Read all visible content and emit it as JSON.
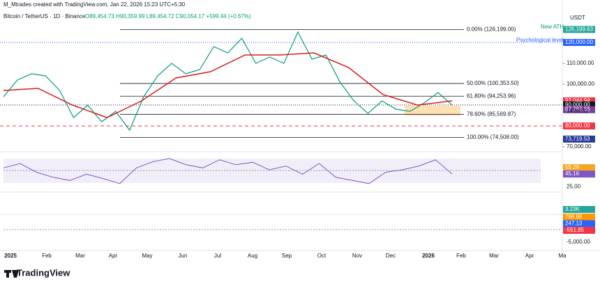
{
  "header": {
    "credit": "M_Mtrades created with TradingView.com, Jan 22, 2026 15:23 UTC+5:30",
    "symbol": "Bitcoin / TetherUS · 1D · Binance",
    "ohlc": "O89,454.73 H90,359.99 L89,454.72 C90,054.17 +599.44 (+0.67%)",
    "currency": "USDT"
  },
  "price_axis": {
    "ticks": [
      {
        "value": 110000,
        "label": "110,000.00"
      },
      {
        "value": 100000,
        "label": "100,000.00"
      },
      {
        "value": 70000,
        "label": "70,000.00"
      }
    ],
    "badges": [
      {
        "value": 126199.63,
        "label": "126,199.63",
        "color": "#26a69a"
      },
      {
        "value": 120000,
        "label": "120,000.00",
        "color": "#2962ff"
      },
      {
        "value": 92044.94,
        "label": "92,044.94",
        "color": "#f23645"
      },
      {
        "value": 90054.17,
        "label": "90,054.17",
        "color": "#131722"
      },
      {
        "value": 90000,
        "label": "90,000.00",
        "color": "#131722"
      },
      {
        "value": 87787.68,
        "label": "87,787.68",
        "color": "#7b3fa0"
      },
      {
        "value": 80000,
        "label": "80,000.00",
        "color": "#f23645"
      },
      {
        "value": 73719.53,
        "label": "73,719.53",
        "color": "#2a3a9a"
      }
    ],
    "countdown": "14:06:32"
  },
  "fib_levels": [
    {
      "label": "0.00% (126,199.00)",
      "value": 126199
    },
    {
      "label": "50.00% (100,353.50)",
      "value": 100353.5
    },
    {
      "label": "61.80% (94,253.96)",
      "value": 94253.96
    },
    {
      "label": "78.60% (85,569.87)",
      "value": 85569.87
    },
    {
      "label": "100.00% (74,508.00)",
      "value": 74508
    }
  ],
  "annotations": {
    "ath": "New ATH",
    "psych": "Psychological level",
    "psych_value": 120000,
    "support_value": 80000
  },
  "price_closes": [
    94000,
    102000,
    105000,
    104000,
    97000,
    84000,
    90000,
    82000,
    87000,
    78000,
    94000,
    104000,
    110000,
    105000,
    107000,
    118000,
    115000,
    122000,
    110000,
    113000,
    110000,
    125000,
    112000,
    114000,
    101000,
    92000,
    86000,
    92000,
    88000,
    87000,
    91000,
    96000,
    90054.17
  ],
  "moving_average": [
    97000,
    98000,
    90000,
    84000,
    92000,
    103000,
    106000,
    114000,
    114000,
    115000,
    108000,
    95000,
    90000,
    92044.94
  ],
  "rsi": {
    "values": [
      55,
      62,
      48,
      40,
      35,
      45,
      38,
      30,
      55,
      65,
      70,
      60,
      55,
      68,
      60,
      64,
      52,
      58,
      45,
      62,
      40,
      35,
      30,
      48,
      52,
      58,
      68,
      45.16
    ],
    "badges": [
      {
        "value": 55.29,
        "label": "55.29",
        "color": "#f5a623"
      },
      {
        "value": 45.16,
        "label": "45.16",
        "color": "#7e57c2"
      }
    ],
    "tick": {
      "value": 25,
      "label": "25.00"
    }
  },
  "volume": {
    "badge": "3.23K"
  },
  "macd": {
    "badges": [
      {
        "label": "798.98",
        "color": "#ff9800"
      },
      {
        "label": "247.13",
        "color": "#2962ff"
      },
      {
        "label": "-551.85",
        "color": "#f23645"
      }
    ],
    "tick": "-5,000.00"
  },
  "time_axis": [
    "2025",
    "Feb",
    "Mar",
    "Apr",
    "May",
    "Jun",
    "Jul",
    "Aug",
    "Sep",
    "Oct",
    "Nov",
    "Dec",
    "2026",
    "Feb",
    "Mar",
    "Apr",
    "Ma"
  ],
  "logo": "TradingView"
}
